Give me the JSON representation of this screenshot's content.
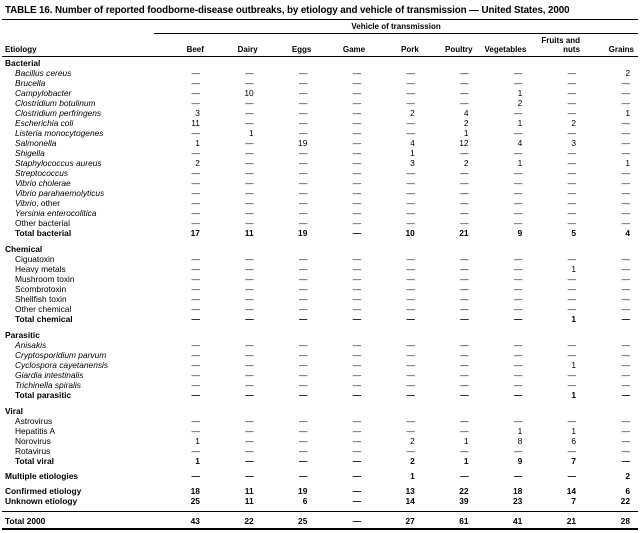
{
  "page": {
    "title": "TABLE 16. Number of reported foodborne-disease outbreaks, by etiology and vehicle of transmission — United States, 2000"
  },
  "table": {
    "span_header": "Vehicle of transmission",
    "etiology_header": "Etiology",
    "columns": [
      "Beef",
      "Dairy",
      "Eggs",
      "Game",
      "Pork",
      "Poultry",
      "Vegetables",
      "Fruits and nuts",
      "Grains"
    ],
    "dash": "—",
    "sections": [
      {
        "header": "Bacterial",
        "gap_before": false,
        "rows": [
          {
            "label": "Bacillus cereus",
            "style": "italic",
            "indent": true,
            "values": [
              "—",
              "—",
              "—",
              "—",
              "—",
              "—",
              "—",
              "—",
              "2"
            ]
          },
          {
            "label": "Brucella",
            "style": "italic",
            "indent": true,
            "values": [
              "—",
              "—",
              "—",
              "—",
              "—",
              "—",
              "—",
              "—",
              "—"
            ]
          },
          {
            "label": "Campylobacter",
            "style": "italic",
            "indent": true,
            "values": [
              "—",
              "10",
              "—",
              "—",
              "—",
              "—",
              "1",
              "—",
              "—"
            ]
          },
          {
            "label": "Clostridium botulinum",
            "style": "italic",
            "indent": true,
            "values": [
              "—",
              "—",
              "—",
              "—",
              "—",
              "—",
              "2",
              "—",
              "—"
            ]
          },
          {
            "label": "Clostridium perfringens",
            "style": "italic",
            "indent": true,
            "values": [
              "3",
              "—",
              "—",
              "—",
              "2",
              "4",
              "—",
              "—",
              "1"
            ]
          },
          {
            "label": "Escherichia coli",
            "style": "italic",
            "indent": true,
            "values": [
              "11",
              "—",
              "—",
              "—",
              "—",
              "2",
              "1",
              "2",
              "—"
            ]
          },
          {
            "label": "Listeria monocytogenes",
            "style": "italic",
            "indent": true,
            "values": [
              "—",
              "1",
              "—",
              "—",
              "—",
              "1",
              "—",
              "—",
              "—"
            ]
          },
          {
            "label": "Salmonella",
            "style": "italic",
            "indent": true,
            "values": [
              "1",
              "—",
              "19",
              "—",
              "4",
              "12",
              "4",
              "3",
              "—"
            ]
          },
          {
            "label": "Shigella",
            "style": "italic",
            "indent": true,
            "values": [
              "—",
              "—",
              "—",
              "—",
              "1",
              "—",
              "—",
              "—",
              "—"
            ]
          },
          {
            "label": "Staphylococcus aureus",
            "style": "italic",
            "indent": true,
            "values": [
              "2",
              "—",
              "—",
              "—",
              "3",
              "2",
              "1",
              "—",
              "1"
            ]
          },
          {
            "label": "Streptococcus",
            "style": "italic",
            "indent": true,
            "values": [
              "—",
              "—",
              "—",
              "—",
              "—",
              "—",
              "—",
              "—",
              "—"
            ]
          },
          {
            "label": "Vibrio cholerae",
            "style": "italic",
            "indent": true,
            "values": [
              "—",
              "—",
              "—",
              "—",
              "—",
              "—",
              "—",
              "—",
              "—"
            ]
          },
          {
            "label": "Vibrio parahaemolyticus",
            "style": "italic",
            "indent": true,
            "values": [
              "—",
              "—",
              "—",
              "—",
              "—",
              "—",
              "—",
              "—",
              "—"
            ]
          },
          {
            "label": "Vibrio",
            "suffix": ", other",
            "style": "italic",
            "indent": true,
            "values": [
              "—",
              "—",
              "—",
              "—",
              "—",
              "—",
              "—",
              "—",
              "—"
            ]
          },
          {
            "label": "Yersinia enterocolitica",
            "style": "italic",
            "indent": true,
            "values": [
              "—",
              "—",
              "—",
              "—",
              "—",
              "—",
              "—",
              "—",
              "—"
            ]
          },
          {
            "label": "Other bacterial",
            "style": "plain",
            "indent": true,
            "values": [
              "—",
              "—",
              "—",
              "—",
              "—",
              "—",
              "—",
              "—",
              "—"
            ]
          },
          {
            "label": "Total bacterial",
            "style": "bold",
            "indent": true,
            "values": [
              "17",
              "11",
              "19",
              "—",
              "10",
              "21",
              "9",
              "5",
              "4"
            ]
          }
        ]
      },
      {
        "header": "Chemical",
        "gap_before": true,
        "rows": [
          {
            "label": "Ciguatoxin",
            "style": "plain",
            "indent": true,
            "values": [
              "—",
              "—",
              "—",
              "—",
              "—",
              "—",
              "—",
              "—",
              "—"
            ]
          },
          {
            "label": "Heavy metals",
            "style": "plain",
            "indent": true,
            "values": [
              "—",
              "—",
              "—",
              "—",
              "—",
              "—",
              "—",
              "1",
              "—"
            ]
          },
          {
            "label": "Mushroom toxin",
            "style": "plain",
            "indent": true,
            "values": [
              "—",
              "—",
              "—",
              "—",
              "—",
              "—",
              "—",
              "—",
              "—"
            ]
          },
          {
            "label": "Scombrotoxin",
            "style": "plain",
            "indent": true,
            "values": [
              "—",
              "—",
              "—",
              "—",
              "—",
              "—",
              "—",
              "—",
              "—"
            ]
          },
          {
            "label": "Shellfish toxin",
            "style": "plain",
            "indent": true,
            "values": [
              "—",
              "—",
              "—",
              "—",
              "—",
              "—",
              "—",
              "—",
              "—"
            ]
          },
          {
            "label": "Other chemical",
            "style": "plain",
            "indent": true,
            "values": [
              "—",
              "—",
              "—",
              "—",
              "—",
              "—",
              "—",
              "—",
              "—"
            ]
          },
          {
            "label": "Total chemical",
            "style": "bold",
            "indent": true,
            "values": [
              "—",
              "—",
              "—",
              "—",
              "—",
              "—",
              "—",
              "1",
              "—"
            ]
          }
        ]
      },
      {
        "header": "Parasitic",
        "gap_before": true,
        "rows": [
          {
            "label": "Anisakis",
            "style": "italic",
            "indent": true,
            "values": [
              "—",
              "—",
              "—",
              "—",
              "—",
              "—",
              "—",
              "—",
              "—"
            ]
          },
          {
            "label": "Cryptosporidium parvum",
            "style": "italic",
            "indent": true,
            "values": [
              "—",
              "—",
              "—",
              "—",
              "—",
              "—",
              "—",
              "—",
              "—"
            ]
          },
          {
            "label": "Cyclospora cayetanensis",
            "style": "italic",
            "indent": true,
            "values": [
              "—",
              "—",
              "—",
              "—",
              "—",
              "—",
              "—",
              "1",
              "—"
            ]
          },
          {
            "label": "Giardia intestinalis",
            "style": "italic",
            "indent": true,
            "values": [
              "—",
              "—",
              "—",
              "—",
              "—",
              "—",
              "—",
              "—",
              "—"
            ]
          },
          {
            "label": "Trichinella spiralis",
            "style": "italic",
            "indent": true,
            "values": [
              "—",
              "—",
              "—",
              "—",
              "—",
              "—",
              "—",
              "—",
              "—"
            ]
          },
          {
            "label": "Total parasitic",
            "style": "bold",
            "indent": true,
            "values": [
              "—",
              "—",
              "—",
              "—",
              "—",
              "—",
              "—",
              "1",
              "—"
            ]
          }
        ]
      },
      {
        "header": "Viral",
        "gap_before": true,
        "rows": [
          {
            "label": "Astrovirus",
            "style": "plain",
            "indent": true,
            "values": [
              "—",
              "—",
              "—",
              "—",
              "—",
              "—",
              "—",
              "—",
              "—"
            ]
          },
          {
            "label": "Hepatitis A",
            "style": "plain",
            "indent": true,
            "values": [
              "—",
              "—",
              "—",
              "—",
              "—",
              "—",
              "1",
              "1",
              "—"
            ]
          },
          {
            "label": "Norovirus",
            "style": "plain",
            "indent": true,
            "values": [
              "1",
              "—",
              "—",
              "—",
              "2",
              "1",
              "8",
              "6",
              "—"
            ]
          },
          {
            "label": "Rotavirus",
            "style": "plain",
            "indent": true,
            "values": [
              "—",
              "—",
              "—",
              "—",
              "—",
              "—",
              "—",
              "—",
              "—"
            ]
          },
          {
            "label": "Total viral",
            "style": "bold",
            "indent": true,
            "values": [
              "1",
              "—",
              "—",
              "—",
              "2",
              "1",
              "9",
              "7",
              "—"
            ]
          }
        ]
      },
      {
        "header": null,
        "gap_before": true,
        "rows": [
          {
            "label": "Multiple etiologies",
            "style": "bold",
            "indent": false,
            "values": [
              "—",
              "—",
              "—",
              "—",
              "1",
              "—",
              "—",
              "—",
              "2"
            ]
          }
        ]
      },
      {
        "header": null,
        "gap_before": true,
        "rows": [
          {
            "label": "Confirmed etiology",
            "style": "bold",
            "indent": false,
            "values": [
              "18",
              "11",
              "19",
              "—",
              "13",
              "22",
              "18",
              "14",
              "6"
            ]
          },
          {
            "label": "Unknown etiology",
            "style": "bold",
            "indent": false,
            "values": [
              "25",
              "11",
              "6",
              "—",
              "14",
              "39",
              "23",
              "7",
              "22"
            ]
          }
        ]
      },
      {
        "header": null,
        "gap_before": true,
        "rows": [
          {
            "label": "Total 2000",
            "style": "bold",
            "indent": false,
            "grand_total": true,
            "values": [
              "43",
              "22",
              "25",
              "—",
              "27",
              "61",
              "41",
              "21",
              "28"
            ]
          }
        ]
      }
    ]
  }
}
